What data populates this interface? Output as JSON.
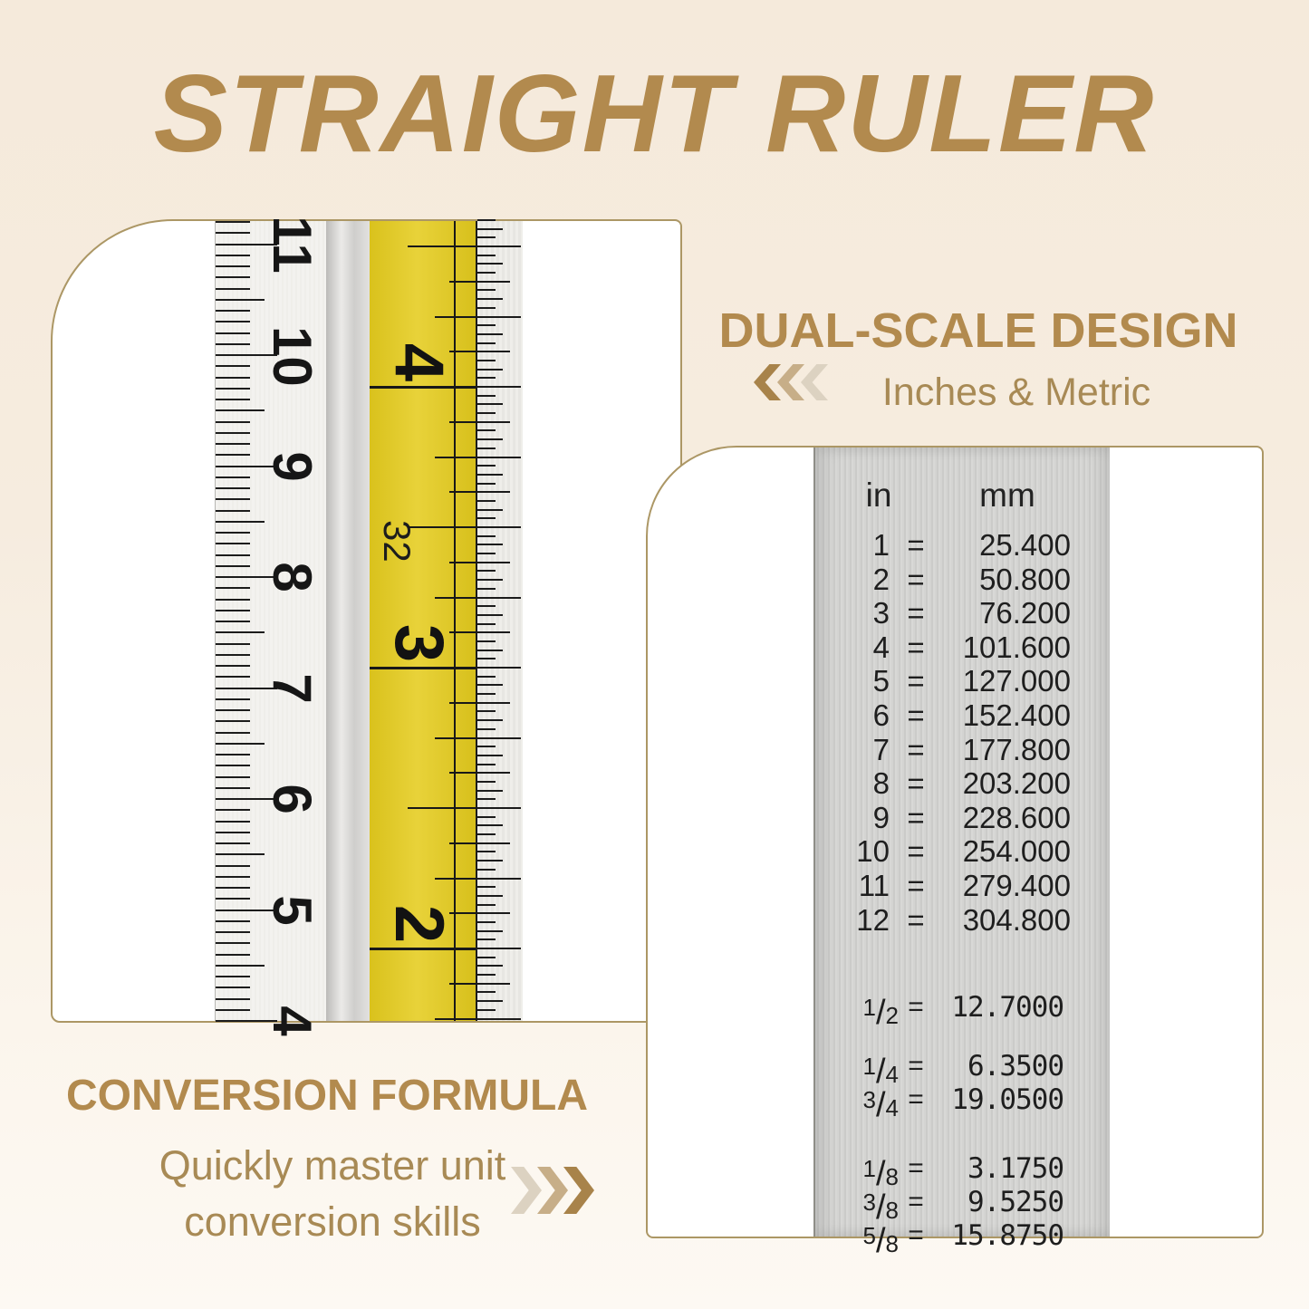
{
  "title": "STRAIGHT RULER",
  "dual_scale": {
    "heading": "DUAL-SCALE DESIGN",
    "subheading": "Inches & Metric",
    "chevrons_icon": "triple-chevron-left"
  },
  "conversion_formula": {
    "heading": "CONVERSION FORMULA",
    "line1": "Quickly master unit",
    "line2": "conversion skills",
    "chevrons_icon": "triple-chevron-right"
  },
  "ruler": {
    "cm_numbers": [
      "11",
      "10",
      "9",
      "8",
      "7",
      "6",
      "5",
      "4"
    ],
    "inch_numbers": [
      "4",
      "3",
      "2"
    ],
    "tape_label": "32"
  },
  "conversion_table": {
    "col_in": "in",
    "col_mm": "mm",
    "equals": "=",
    "inch_rows": [
      {
        "in": "1",
        "mm": "25.400"
      },
      {
        "in": "2",
        "mm": "50.800"
      },
      {
        "in": "3",
        "mm": "76.200"
      },
      {
        "in": "4",
        "mm": "101.600"
      },
      {
        "in": "5",
        "mm": "127.000"
      },
      {
        "in": "6",
        "mm": "152.400"
      },
      {
        "in": "7",
        "mm": "177.800"
      },
      {
        "in": "8",
        "mm": "203.200"
      },
      {
        "in": "9",
        "mm": "228.600"
      },
      {
        "in": "10",
        "mm": "254.000"
      },
      {
        "in": "11",
        "mm": "279.400"
      },
      {
        "in": "12",
        "mm": "304.800"
      }
    ],
    "fraction_groups": [
      [
        {
          "num": "1",
          "den": "2",
          "mm": "12.7000"
        }
      ],
      [
        {
          "num": "1",
          "den": "4",
          "mm": "6.3500"
        },
        {
          "num": "3",
          "den": "4",
          "mm": "19.0500"
        }
      ],
      [
        {
          "num": "1",
          "den": "8",
          "mm": "3.1750"
        },
        {
          "num": "3",
          "den": "8",
          "mm": "9.5250"
        },
        {
          "num": "5",
          "den": "8",
          "mm": "15.8750"
        }
      ]
    ]
  },
  "colors": {
    "accent_gold": "#b28a4e",
    "accent_gold_soft": "#a88a55",
    "chevron_dark": "#a8834a",
    "chevron_mid": "#c7ae88",
    "chevron_light": "#dcd2c1",
    "tape_yellow": "#e5cc1e",
    "panel_border": "#ac9765",
    "metal_silver": "#d2d2d0",
    "ink": "#1c1c1c"
  }
}
